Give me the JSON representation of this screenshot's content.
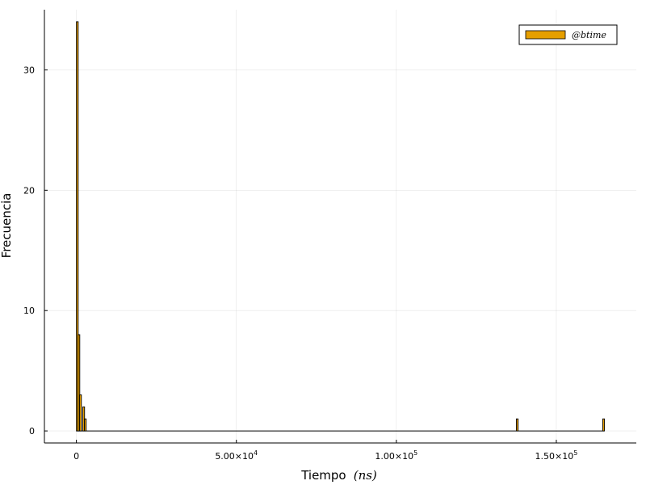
{
  "chart_data": {
    "type": "bar",
    "title": "",
    "xlabel": "Tiempo",
    "xlabel_unit": "(ns)",
    "ylabel": "Frecuencia",
    "xlim": [
      -10000,
      175000
    ],
    "ylim": [
      -1,
      35
    ],
    "grid": true,
    "legend_position": "top-right",
    "x_ticks": [
      {
        "value": 0,
        "mantissa": "0",
        "exponent": ""
      },
      {
        "value": 50000,
        "mantissa": "5.00×10",
        "exponent": "4"
      },
      {
        "value": 100000,
        "mantissa": "1.00×10",
        "exponent": "5"
      },
      {
        "value": 150000,
        "mantissa": "1.50×10",
        "exponent": "5"
      }
    ],
    "y_ticks": [
      {
        "value": 0,
        "label": "0"
      },
      {
        "value": 10,
        "label": "10"
      },
      {
        "value": 20,
        "label": "20"
      },
      {
        "value": 30,
        "label": "30"
      }
    ],
    "bin_width": 500,
    "series": [
      {
        "name": "@btime",
        "color": "#e69f00",
        "bins": [
          {
            "start": 0,
            "count": 34
          },
          {
            "start": 500,
            "count": 8
          },
          {
            "start": 1000,
            "count": 3
          },
          {
            "start": 1500,
            "count": 0
          },
          {
            "start": 2000,
            "count": 2
          },
          {
            "start": 2500,
            "count": 1
          },
          {
            "start": 137500,
            "count": 1
          },
          {
            "start": 164500,
            "count": 1
          }
        ]
      }
    ]
  }
}
